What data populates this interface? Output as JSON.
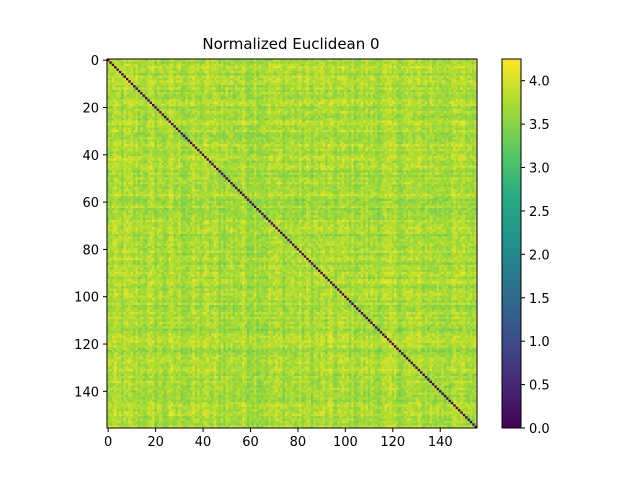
{
  "chart_data": {
    "type": "heatmap",
    "title": "Normalized Euclidean 0",
    "xlabel": "",
    "ylabel": "",
    "size": 156,
    "xlim": [
      -0.5,
      155.5
    ],
    "ylim": [
      155.5,
      -0.5
    ],
    "x_ticks": [
      0,
      20,
      40,
      60,
      80,
      100,
      120,
      140
    ],
    "x_tick_labels": [
      "0",
      "20",
      "40",
      "60",
      "80",
      "100",
      "120",
      "140"
    ],
    "y_ticks": [
      0,
      20,
      40,
      60,
      80,
      100,
      120,
      140
    ],
    "y_tick_labels": [
      "0",
      "20",
      "40",
      "60",
      "80",
      "100",
      "120",
      "140"
    ],
    "diagonal_value": 0.0,
    "typical_offdiag_range": [
      3.0,
      4.2
    ],
    "colorbar": {
      "colormap": "viridis",
      "vmin": 0.0,
      "vmax": 4.25,
      "ticks": [
        0.0,
        0.5,
        1.0,
        1.5,
        2.0,
        2.5,
        3.0,
        3.5,
        4.0
      ],
      "tick_labels": [
        "0.0",
        "0.5",
        "1.0",
        "1.5",
        "2.0",
        "2.5",
        "3.0",
        "3.5",
        "4.0"
      ]
    },
    "grid": false,
    "legend": "none"
  }
}
